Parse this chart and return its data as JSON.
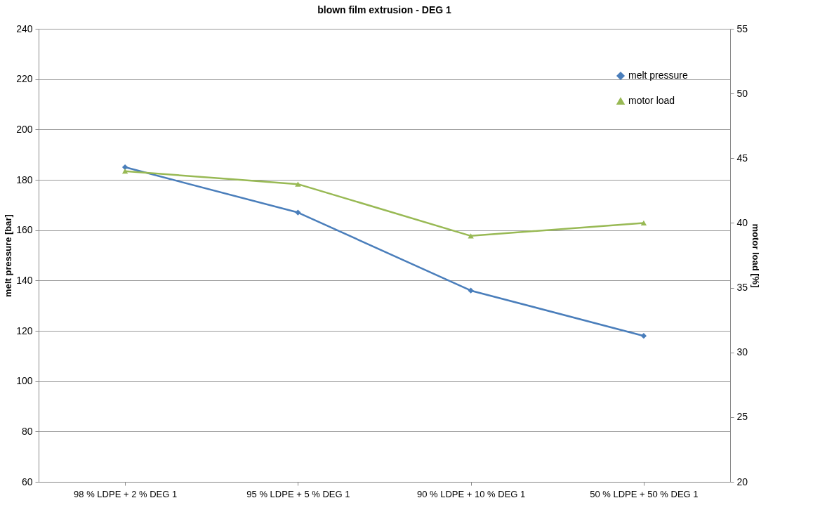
{
  "chart_data": {
    "type": "line",
    "title": "blown film extrusion - DEG 1",
    "ylabel": "melt pressure [bar]",
    "y2label": "motor load [%]",
    "categories": [
      "98 % LDPE + 2 % DEG 1",
      "95 % LDPE + 5 % DEG 1",
      "90 % LDPE + 10 % DEG 1",
      "50 % LDPE + 50 % DEG 1"
    ],
    "series": [
      {
        "name": "melt pressure",
        "color": "#4a7ebb",
        "values": [
          185,
          167,
          136,
          118
        ],
        "marker": "diamond"
      },
      {
        "name": "motor load",
        "color": "#98b954",
        "values": [
          44,
          43,
          39,
          40
        ],
        "axis": "y2",
        "marker": "triangle"
      }
    ],
    "ylim": [
      60,
      240
    ],
    "yticks": [
      60,
      80,
      100,
      120,
      140,
      160,
      180,
      200,
      220,
      240
    ],
    "y2lim": [
      20,
      55
    ],
    "y2ticks": [
      20,
      25,
      30,
      35,
      40,
      45,
      50,
      55
    ],
    "grid": "y",
    "legend": "top right",
    "line_style": "solid"
  }
}
